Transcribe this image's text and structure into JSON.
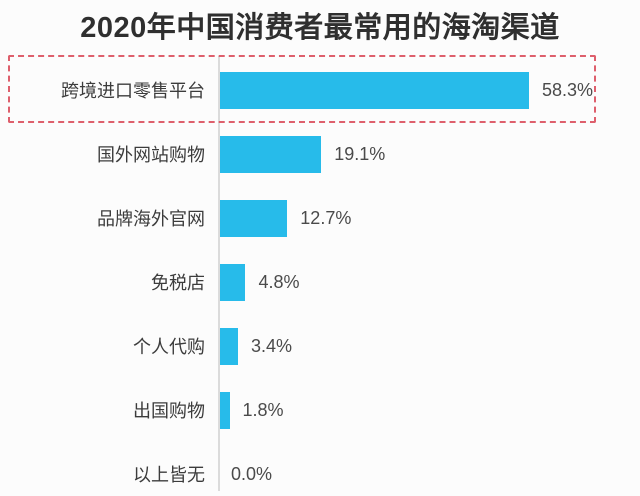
{
  "title": "2020年中国消费者最常用的海淘渠道",
  "chart_data": {
    "type": "bar",
    "orientation": "horizontal",
    "title": "2020年中国消费者最常用的海淘渠道",
    "categories": [
      "跨境进口零售平台",
      "国外网站购物",
      "品牌海外官网",
      "免税店",
      "个人代购",
      "出国购物",
      "以上皆无"
    ],
    "values": [
      58.3,
      19.1,
      12.7,
      4.8,
      3.4,
      1.8,
      0.0
    ],
    "value_labels": [
      "58.3%",
      "19.1%",
      "12.7%",
      "4.8%",
      "3.4%",
      "1.8%",
      "0.0%"
    ],
    "xlim": [
      0,
      60
    ],
    "grid": false,
    "legend_position": "none",
    "highlight": {
      "index": 0,
      "style": "red-dashed-box"
    }
  },
  "colors": {
    "bar": "#27BBEA",
    "highlight_border": "#DE5F6C",
    "title_text": "#2F2F2F",
    "category_text": "#3C3C3C",
    "value_text": "#4A4A4A",
    "axis_line": "#DBDBDB",
    "background": "#FCFCFC"
  }
}
